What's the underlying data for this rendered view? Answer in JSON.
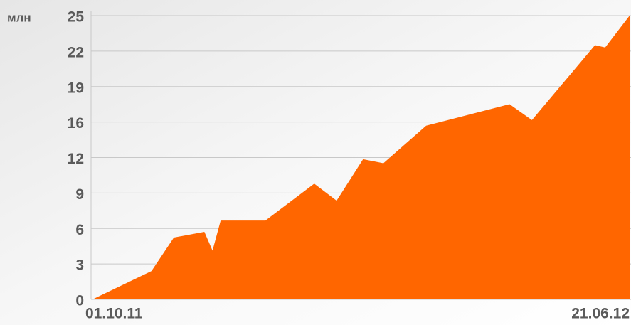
{
  "chart_data": {
    "type": "area",
    "y_unit_label": "млн",
    "x": [
      0,
      29,
      40,
      55,
      59,
      63,
      85,
      109,
      120,
      133,
      143,
      164,
      205,
      216,
      247,
      252,
      264
    ],
    "values": [
      0,
      2.5,
      5.45,
      5.95,
      4.3,
      6.95,
      6.95,
      10.2,
      8.7,
      12.35,
      12.0,
      15.3,
      17.2,
      15.8,
      22.4,
      22.2,
      25
    ],
    "color": "#ff6600",
    "xlim": [
      0,
      264
    ],
    "xticks": [
      {
        "value": 0,
        "label": "01.10.11"
      },
      {
        "value": 264,
        "label": "21.06.12"
      }
    ],
    "ylim": [
      0,
      25
    ],
    "yticks": [
      0,
      {
        "value": 3.125,
        "label": "3"
      },
      {
        "value": 6.25,
        "label": "6"
      },
      {
        "value": 9.375,
        "label": "9"
      },
      {
        "value": 12.5,
        "label": "12"
      },
      {
        "value": 15.625,
        "label": "16"
      },
      {
        "value": 18.75,
        "label": "19"
      },
      {
        "value": 21.875,
        "label": "22"
      },
      25
    ],
    "grid": true
  }
}
